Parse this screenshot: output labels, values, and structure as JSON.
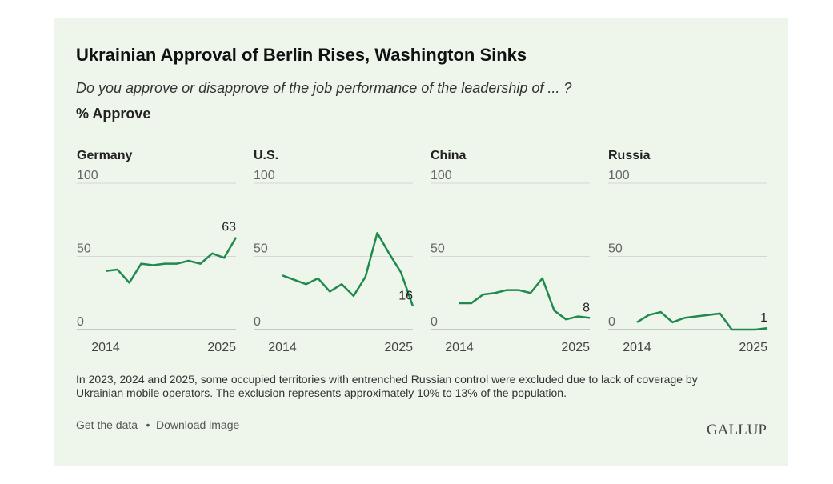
{
  "title": "Ukrainian Approval of Berlin Rises, Washington Sinks",
  "subtitle": "Do you approve or disapprove of the job performance of the leadership of ... ?",
  "y_label": "% Approve",
  "footnote": "In 2023, 2024 and 2025, some occupied territories with entrenched Russian control were excluded due to lack of coverage by Ukrainian mobile operators. The exclusion represents approximately 10% to 13% of the population.",
  "links": [
    "Get the data",
    "Download image"
  ],
  "link_separator": "•",
  "logo": "GALLUP",
  "chart_data": [
    {
      "type": "line",
      "title": "Germany",
      "x": [
        2014,
        2015,
        2016,
        2017,
        2018,
        2019,
        2020,
        2021,
        2022,
        2023,
        2024,
        2025
      ],
      "series": [
        {
          "name": "Germany",
          "color": "#1f8a4c",
          "values": [
            40,
            41,
            32,
            45,
            44,
            45,
            45,
            47,
            45,
            52,
            49,
            63
          ]
        }
      ],
      "xlim": [
        2014,
        2025
      ],
      "xticks": [
        2014,
        2025
      ],
      "ylim": [
        0,
        100
      ],
      "yticks": [
        0,
        50,
        100
      ],
      "grid": true
    },
    {
      "type": "line",
      "title": "U.S.",
      "x": [
        2014,
        2015,
        2016,
        2017,
        2018,
        2019,
        2020,
        2021,
        2022,
        2023,
        2024,
        2025
      ],
      "series": [
        {
          "name": "U.S.",
          "color": "#1f8a4c",
          "values": [
            37,
            34,
            31,
            35,
            26,
            31,
            23,
            36,
            66,
            52,
            39,
            16
          ]
        }
      ],
      "xlim": [
        2014,
        2025
      ],
      "xticks": [
        2014,
        2025
      ],
      "ylim": [
        0,
        100
      ],
      "yticks": [
        0,
        50,
        100
      ],
      "grid": true
    },
    {
      "type": "line",
      "title": "China",
      "x": [
        2014,
        2015,
        2016,
        2017,
        2018,
        2019,
        2020,
        2021,
        2022,
        2023,
        2024,
        2025
      ],
      "series": [
        {
          "name": "China",
          "color": "#1f8a4c",
          "values": [
            18,
            18,
            24,
            25,
            27,
            27,
            25,
            35,
            13,
            7,
            9,
            8
          ]
        }
      ],
      "xlim": [
        2014,
        2025
      ],
      "xticks": [
        2014,
        2025
      ],
      "ylim": [
        0,
        100
      ],
      "yticks": [
        0,
        50,
        100
      ],
      "grid": true
    },
    {
      "type": "line",
      "title": "Russia",
      "x": [
        2014,
        2015,
        2016,
        2017,
        2018,
        2019,
        2020,
        2021,
        2022,
        2023,
        2024,
        2025
      ],
      "series": [
        {
          "name": "Russia",
          "color": "#1f8a4c",
          "values": [
            5,
            10,
            12,
            5,
            8,
            9,
            10,
            11,
            0,
            0,
            0,
            1
          ]
        }
      ],
      "xlim": [
        2014,
        2025
      ],
      "xticks": [
        2014,
        2025
      ],
      "ylim": [
        0,
        100
      ],
      "yticks": [
        0,
        50,
        100
      ],
      "grid": true
    }
  ]
}
